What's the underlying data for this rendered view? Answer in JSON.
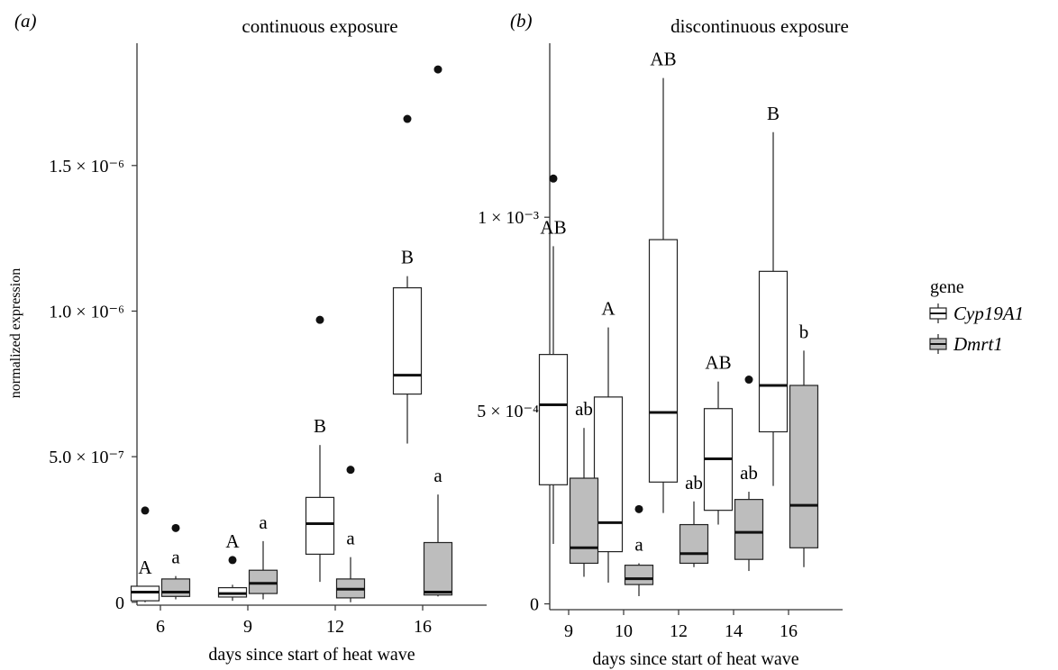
{
  "legend": {
    "title": "gene",
    "items": [
      {
        "name": "Cyp19A1",
        "fill": "#ffffff"
      },
      {
        "name": "Dmrt1",
        "fill": "#bdbdbd"
      }
    ]
  },
  "chart_data": [
    {
      "type": "box",
      "panel_label": "(a)",
      "title": "continuous exposure",
      "xlabel": "days since start of heat wave",
      "ylabel": "normalized expression",
      "categories": [
        "6",
        "9",
        "12",
        "16"
      ],
      "ylim": [
        -1e-08,
        1.92e-06
      ],
      "yticks": [
        {
          "value": 0,
          "label": "0"
        },
        {
          "value": 5e-07,
          "label": "5.0 × 10⁻⁷"
        },
        {
          "value": 1e-06,
          "label": "1.0 × 10⁻⁶"
        },
        {
          "value": 1.5e-06,
          "label": "1.5 × 10⁻⁶"
        }
      ],
      "series": [
        {
          "name": "Cyp19A1",
          "boxes": [
            {
              "category": "6",
              "min": 0,
              "q1": 5e-09,
              "median": 3.5e-08,
              "q3": 5.5e-08,
              "max": 5.5e-08,
              "outliers": [
                3.15e-07
              ],
              "letter": "A"
            },
            {
              "category": "9",
              "min": 5e-09,
              "q1": 1.8e-08,
              "median": 3e-08,
              "q3": 5e-08,
              "max": 6e-08,
              "outliers": [
                1.45e-07
              ],
              "letter": "A"
            },
            {
              "category": "12",
              "min": 7e-08,
              "q1": 1.65e-07,
              "median": 2.7e-07,
              "q3": 3.6e-07,
              "max": 5.4e-07,
              "outliers": [
                9.7e-07
              ],
              "letter": "B"
            },
            {
              "category": "16",
              "min": 5.45e-07,
              "q1": 7.15e-07,
              "median": 7.8e-07,
              "q3": 1.08e-06,
              "max": 1.12e-06,
              "outliers": [
                1.66e-06
              ],
              "letter": "B"
            }
          ]
        },
        {
          "name": "Dmrt1",
          "boxes": [
            {
              "category": "6",
              "min": 1e-08,
              "q1": 2e-08,
              "median": 3.5e-08,
              "q3": 8e-08,
              "max": 9e-08,
              "outliers": [
                2.55e-07
              ],
              "letter": "a"
            },
            {
              "category": "9",
              "min": 1e-08,
              "q1": 3e-08,
              "median": 6.5e-08,
              "q3": 1.1e-07,
              "max": 2.1e-07,
              "outliers": [],
              "letter": "a"
            },
            {
              "category": "12",
              "min": 0,
              "q1": 1.5e-08,
              "median": 4.5e-08,
              "q3": 8e-08,
              "max": 1.55e-07,
              "outliers": [
                4.55e-07
              ],
              "letter": "a"
            },
            {
              "category": "16",
              "min": 2e-08,
              "q1": 2.5e-08,
              "median": 3.5e-08,
              "q3": 2.05e-07,
              "max": 3.7e-07,
              "outliers": [
                1.83e-06
              ],
              "letter": "a"
            }
          ]
        }
      ]
    },
    {
      "type": "box",
      "panel_label": "(b)",
      "title": "discontinuous exposure",
      "xlabel": "days since start of heat wave",
      "ylabel": "",
      "categories": [
        "9",
        "10",
        "12",
        "14",
        "16"
      ],
      "ylim": [
        -1.5e-05,
        0.00145
      ],
      "yticks": [
        {
          "value": 0,
          "label": "0"
        },
        {
          "value": 0.0005,
          "label": "5 × 10⁻⁴"
        },
        {
          "value": 0.001,
          "label": "1 × 10⁻³"
        }
      ],
      "series": [
        {
          "name": "Cyp19A1",
          "boxes": [
            {
              "category": "9",
              "min": 0.000155,
              "q1": 0.000308,
              "median": 0.000515,
              "q3": 0.000645,
              "max": 0.000925,
              "outliers": [
                0.0011
              ],
              "letter": "AB"
            },
            {
              "category": "10",
              "min": 5.5e-05,
              "q1": 0.000135,
              "median": 0.00021,
              "q3": 0.000535,
              "max": 0.000715,
              "outliers": [],
              "letter": "A"
            },
            {
              "category": "12",
              "min": 0.000235,
              "q1": 0.000315,
              "median": 0.000495,
              "q3": 0.000942,
              "max": 0.00136,
              "outliers": [],
              "letter": "AB"
            },
            {
              "category": "14",
              "min": 0.000205,
              "q1": 0.000242,
              "median": 0.000375,
              "q3": 0.000505,
              "max": 0.000575,
              "outliers": [],
              "letter": "AB"
            },
            {
              "category": "16",
              "min": 0.000305,
              "q1": 0.000445,
              "median": 0.000565,
              "q3": 0.00086,
              "max": 0.00122,
              "outliers": [],
              "letter": "B"
            }
          ]
        },
        {
          "name": "Dmrt1",
          "boxes": [
            {
              "category": "9",
              "min": 7e-05,
              "q1": 0.000105,
              "median": 0.000145,
              "q3": 0.000325,
              "max": 0.000455,
              "outliers": [],
              "letter": "ab"
            },
            {
              "category": "10",
              "min": 2e-05,
              "q1": 5e-05,
              "median": 6.5e-05,
              "q3": 0.0001,
              "max": 0.000105,
              "outliers": [
                0.000245
              ],
              "letter": "a"
            },
            {
              "category": "12",
              "min": 9.5e-05,
              "q1": 0.000105,
              "median": 0.00013,
              "q3": 0.000205,
              "max": 0.000265,
              "outliers": [],
              "letter": "ab"
            },
            {
              "category": "14",
              "min": 8.5e-05,
              "q1": 0.000115,
              "median": 0.000185,
              "q3": 0.00027,
              "max": 0.00029,
              "outliers": [
                0.00058
              ],
              "letter": "ab"
            },
            {
              "category": "16",
              "min": 9.5e-05,
              "q1": 0.000145,
              "median": 0.000255,
              "q3": 0.000565,
              "max": 0.000655,
              "outliers": [],
              "letter": "b"
            }
          ]
        }
      ]
    }
  ]
}
